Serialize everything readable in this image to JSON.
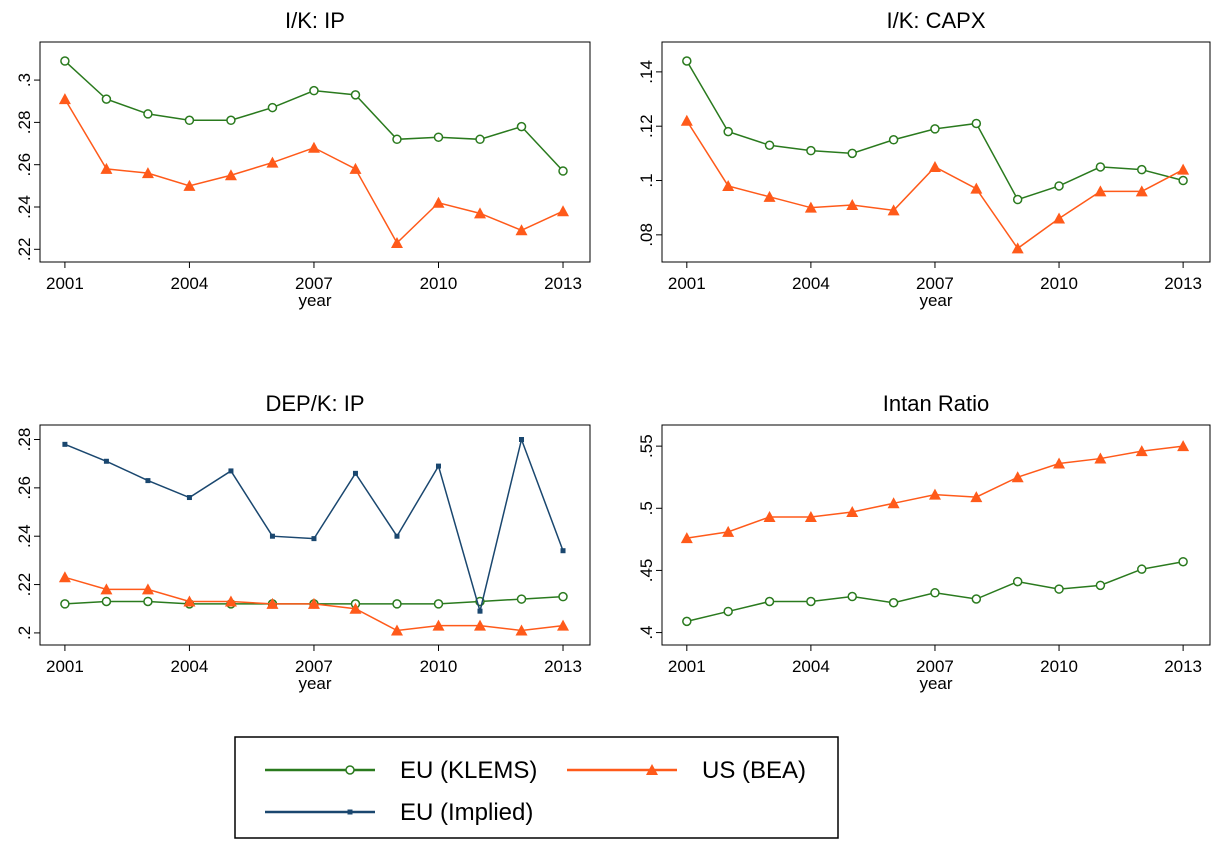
{
  "chart_data": [
    {
      "type": "line",
      "title": "I/K: IP",
      "xlabel": "year",
      "x": [
        2001,
        2002,
        2003,
        2004,
        2005,
        2006,
        2007,
        2008,
        2009,
        2010,
        2011,
        2012,
        2013
      ],
      "xlim": [
        2000.4,
        2013.65
      ],
      "xticks": [
        2001,
        2004,
        2007,
        2010,
        2013
      ],
      "ylim": [
        0.214,
        0.318
      ],
      "yticks": [
        {
          "value": 0.22,
          "label": ".22"
        },
        {
          "value": 0.24,
          "label": ".24"
        },
        {
          "value": 0.26,
          "label": ".26"
        },
        {
          "value": 0.28,
          "label": ".28"
        },
        {
          "value": 0.3,
          "label": ".3"
        }
      ],
      "series": [
        {
          "name": "EU (KLEMS)",
          "color": "#2a7a1e",
          "marker": "circle",
          "values": [
            0.309,
            0.291,
            0.284,
            0.281,
            0.281,
            0.287,
            0.295,
            0.293,
            0.272,
            0.273,
            0.272,
            0.278,
            0.257
          ]
        },
        {
          "name": "US (BEA)",
          "color": "#ff5a1a",
          "marker": "triangle",
          "values": [
            0.291,
            0.258,
            0.256,
            0.25,
            0.255,
            0.261,
            0.268,
            0.258,
            0.223,
            0.242,
            0.237,
            0.229,
            0.238
          ]
        }
      ]
    },
    {
      "type": "line",
      "title": "I/K: CAPX",
      "xlabel": "year",
      "x": [
        2001,
        2002,
        2003,
        2004,
        2005,
        2006,
        2007,
        2008,
        2009,
        2010,
        2011,
        2012,
        2013
      ],
      "xlim": [
        2000.4,
        2013.65
      ],
      "xticks": [
        2001,
        2004,
        2007,
        2010,
        2013
      ],
      "ylim": [
        0.07,
        0.151
      ],
      "yticks": [
        {
          "value": 0.08,
          "label": ".08"
        },
        {
          "value": 0.1,
          "label": ".1"
        },
        {
          "value": 0.12,
          "label": ".12"
        },
        {
          "value": 0.14,
          "label": ".14"
        }
      ],
      "series": [
        {
          "name": "EU (KLEMS)",
          "color": "#2a7a1e",
          "marker": "circle",
          "values": [
            0.144,
            0.118,
            0.113,
            0.111,
            0.11,
            0.115,
            0.119,
            0.121,
            0.093,
            0.098,
            0.105,
            0.104,
            0.1
          ]
        },
        {
          "name": "US (BEA)",
          "color": "#ff5a1a",
          "marker": "triangle",
          "values": [
            0.122,
            0.098,
            0.094,
            0.09,
            0.091,
            0.089,
            0.105,
            0.097,
            0.075,
            0.086,
            0.096,
            0.096,
            0.104
          ]
        }
      ]
    },
    {
      "type": "line",
      "title": "DEP/K: IP",
      "xlabel": "year",
      "x": [
        2001,
        2002,
        2003,
        2004,
        2005,
        2006,
        2007,
        2008,
        2009,
        2010,
        2011,
        2012,
        2013
      ],
      "xlim": [
        2000.4,
        2013.65
      ],
      "xticks": [
        2001,
        2004,
        2007,
        2010,
        2013
      ],
      "ylim": [
        0.195,
        0.286
      ],
      "yticks": [
        {
          "value": 0.2,
          "label": ".2"
        },
        {
          "value": 0.22,
          "label": ".22"
        },
        {
          "value": 0.24,
          "label": ".24"
        },
        {
          "value": 0.26,
          "label": ".26"
        },
        {
          "value": 0.28,
          "label": ".28"
        }
      ],
      "series": [
        {
          "name": "EU (KLEMS)",
          "color": "#2a7a1e",
          "marker": "circle",
          "values": [
            0.212,
            0.213,
            0.213,
            0.212,
            0.212,
            0.212,
            0.212,
            0.212,
            0.212,
            0.212,
            0.213,
            0.214,
            0.215
          ]
        },
        {
          "name": "US (BEA)",
          "color": "#ff5a1a",
          "marker": "triangle",
          "values": [
            0.223,
            0.218,
            0.218,
            0.213,
            0.213,
            0.212,
            0.212,
            0.21,
            0.201,
            0.203,
            0.203,
            0.201,
            0.203
          ]
        },
        {
          "name": "EU (Implied)",
          "color": "#1a476f",
          "marker": "square",
          "values": [
            0.278,
            0.271,
            0.263,
            0.256,
            0.267,
            0.24,
            0.239,
            0.266,
            0.24,
            0.269,
            0.209,
            0.28,
            0.234
          ]
        }
      ]
    },
    {
      "type": "line",
      "title": "Intan Ratio",
      "xlabel": "year",
      "x": [
        2001,
        2002,
        2003,
        2004,
        2005,
        2006,
        2007,
        2008,
        2009,
        2010,
        2011,
        2012,
        2013
      ],
      "xlim": [
        2000.4,
        2013.65
      ],
      "xticks": [
        2001,
        2004,
        2007,
        2010,
        2013
      ],
      "ylim": [
        0.39,
        0.567
      ],
      "yticks": [
        {
          "value": 0.4,
          "label": ".4"
        },
        {
          "value": 0.45,
          "label": ".45"
        },
        {
          "value": 0.5,
          "label": ".5"
        },
        {
          "value": 0.55,
          "label": ".55"
        }
      ],
      "series": [
        {
          "name": "EU (KLEMS)",
          "color": "#2a7a1e",
          "marker": "circle",
          "values": [
            0.409,
            0.417,
            0.425,
            0.425,
            0.429,
            0.424,
            0.432,
            0.427,
            0.441,
            0.435,
            0.438,
            0.451,
            0.457
          ]
        },
        {
          "name": "US (BEA)",
          "color": "#ff5a1a",
          "marker": "triangle",
          "values": [
            0.476,
            0.481,
            0.493,
            0.493,
            0.497,
            0.504,
            0.511,
            0.509,
            0.525,
            0.536,
            0.54,
            0.546,
            0.55
          ]
        }
      ]
    }
  ]
}
